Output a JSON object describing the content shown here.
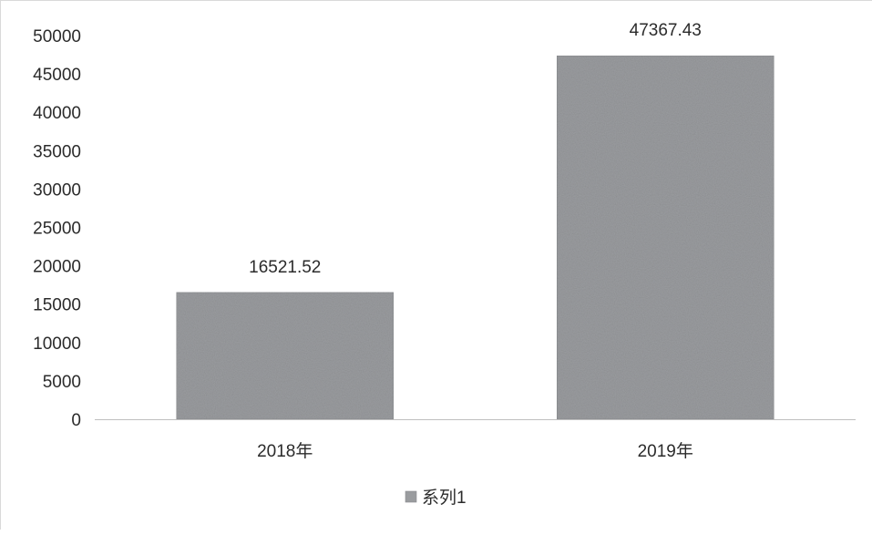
{
  "chart_data": {
    "type": "bar",
    "categories": [
      "2018年",
      "2019年"
    ],
    "series": [
      {
        "name": "系列1",
        "values": [
          16521.52,
          47367.43
        ],
        "data_labels": [
          "16521.52",
          "47367.43"
        ],
        "color": "#9a9c9f"
      }
    ],
    "ylim": [
      0,
      50000
    ],
    "yticks": [
      "0",
      "5000",
      "10000",
      "15000",
      "20000",
      "25000",
      "30000",
      "35000",
      "40000",
      "45000",
      "50000"
    ],
    "grid": false,
    "legend_position": "bottom",
    "title": "",
    "xlabel": "",
    "ylabel": ""
  }
}
